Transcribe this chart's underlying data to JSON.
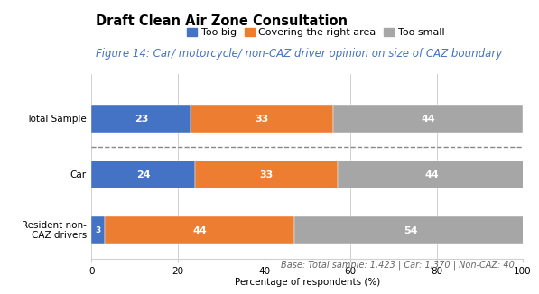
{
  "title": "Draft Clean Air Zone Consultation",
  "subtitle": "Figure 14: Car/ motorcycle/ non-CAZ driver opinion on size of CAZ boundary",
  "categories": [
    "Total Sample",
    "Car",
    "Resident non-\nCAZ drivers"
  ],
  "series": [
    {
      "label": "Too big",
      "color": "#4472C4",
      "values": [
        23,
        24,
        3
      ]
    },
    {
      "label": "Covering the right area",
      "color": "#ED7D31",
      "values": [
        33,
        33,
        44
      ]
    },
    {
      "label": "Too small",
      "color": "#A6A6A6",
      "values": [
        44,
        44,
        54
      ]
    }
  ],
  "xlabel": "Percentage of respondents (%)",
  "xlim": [
    0,
    100
  ],
  "xticks": [
    0,
    20,
    40,
    60,
    80,
    100
  ],
  "footnote": "Base: Total sample: 1,423 | Car: 1,370 | Non-CAZ: 40",
  "bar_height": 0.5,
  "dashed_line_between": [
    0,
    1
  ],
  "background_color": "#FFFFFF",
  "grid_color": "#D0D0D0",
  "title_fontsize": 10.5,
  "subtitle_fontsize": 8.5,
  "legend_fontsize": 8,
  "label_fontsize": 8,
  "axis_fontsize": 7.5,
  "footnote_fontsize": 7
}
